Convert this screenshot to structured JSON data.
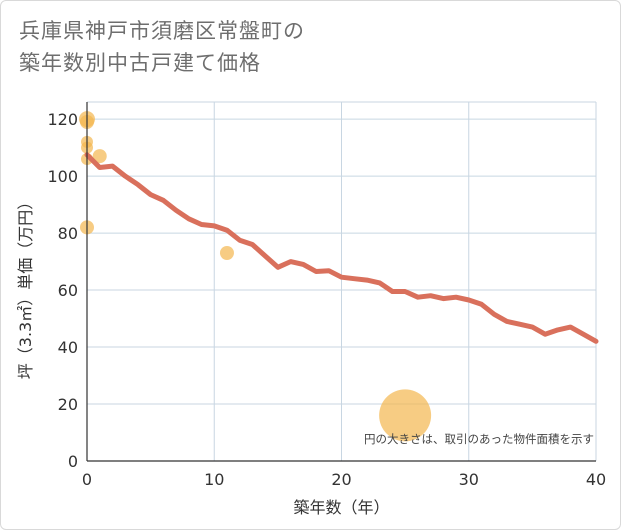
{
  "title_lines": [
    "兵庫県神戸市須磨区常盤町の",
    "築年数別中古戸建て価格"
  ],
  "chart_data": {
    "type": "scatter",
    "xlabel": "築年数（年）",
    "ylabel": "坪（3.3㎡）単価（万円）",
    "xlim": [
      0,
      40
    ],
    "ylim": [
      0,
      126
    ],
    "xticks": [
      0,
      10,
      20,
      30,
      40
    ],
    "yticks": [
      0,
      20,
      40,
      60,
      80,
      100,
      120
    ],
    "grid": true,
    "note": "円の大きさは、取引のあった物件面積を示す",
    "colors": {
      "line": "#d9705c",
      "bubble": "#f3b64f",
      "grid": "#c8d6e2",
      "axis": "#333333"
    },
    "line_series": {
      "x": [
        0,
        1,
        2,
        3,
        4,
        5,
        6,
        7,
        8,
        9,
        10,
        11,
        12,
        13,
        14,
        15,
        16,
        17,
        18,
        19,
        20,
        21,
        22,
        23,
        24,
        25,
        26,
        27,
        28,
        29,
        30,
        31,
        32,
        33,
        34,
        35,
        36,
        37,
        38,
        39,
        40
      ],
      "y": [
        107.5,
        103,
        103.5,
        100,
        97,
        93.5,
        91.5,
        88,
        85,
        83,
        82.5,
        81,
        77.5,
        76,
        72,
        68,
        70,
        69,
        66.5,
        66.8,
        64.5,
        64,
        63.5,
        62.5,
        59.5,
        59.5,
        57.5,
        58,
        57,
        57.5,
        56.5,
        55,
        51.5,
        49,
        48,
        47,
        44.5,
        46,
        47,
        44.5,
        42
      ]
    },
    "bubbles": [
      {
        "x": 0,
        "y": 120,
        "size": 8
      },
      {
        "x": 0,
        "y": 119,
        "size": 7
      },
      {
        "x": 0,
        "y": 112,
        "size": 6
      },
      {
        "x": 0,
        "y": 110,
        "size": 6
      },
      {
        "x": 0,
        "y": 106,
        "size": 6
      },
      {
        "x": 1,
        "y": 107,
        "size": 7
      },
      {
        "x": 0,
        "y": 82,
        "size": 7
      },
      {
        "x": 11,
        "y": 73,
        "size": 7
      },
      {
        "x": 25,
        "y": 16,
        "size": 26
      }
    ]
  }
}
